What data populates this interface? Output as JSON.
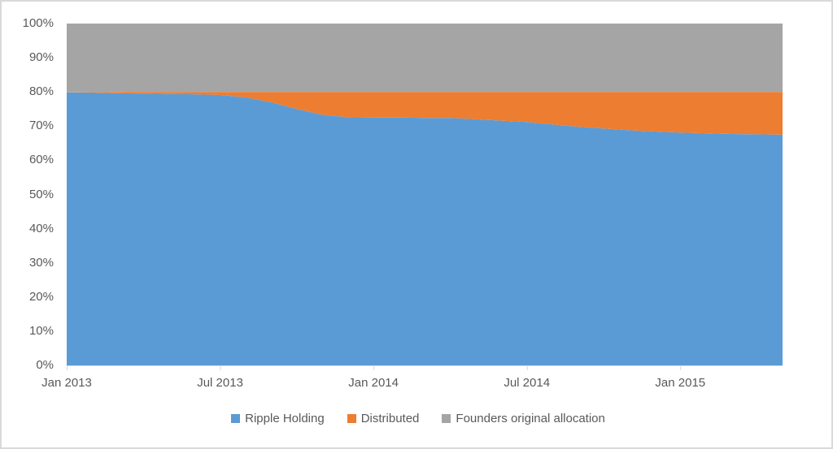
{
  "chart_data": {
    "type": "area",
    "stacked": true,
    "percent_axis": true,
    "title": "",
    "x": [
      "Jan 2013",
      "Feb 2013",
      "Mar 2013",
      "Apr 2013",
      "May 2013",
      "Jun 2013",
      "Jul 2013",
      "Aug 2013",
      "Sep 2013",
      "Oct 2013",
      "Nov 2013",
      "Dec 2013",
      "Jan 2014",
      "Feb 2014",
      "Mar 2014",
      "Apr 2014",
      "May 2014",
      "Jun 2014",
      "Jul 2014",
      "Aug 2014",
      "Sep 2014",
      "Oct 2014",
      "Nov 2014",
      "Dec 2014",
      "Jan 2015",
      "Feb 2015",
      "Mar 2015",
      "Apr 2015",
      "May 2015"
    ],
    "series": [
      {
        "name": "Ripple Holding",
        "color": "#5B9BD5",
        "values": [
          79.9,
          79.8,
          79.6,
          79.5,
          79.4,
          79.3,
          79.1,
          78.4,
          77.0,
          75.0,
          73.3,
          72.6,
          72.5,
          72.5,
          72.4,
          72.4,
          72.0,
          71.6,
          71.2,
          70.5,
          69.8,
          69.3,
          68.8,
          68.4,
          68.1,
          67.9,
          67.7,
          67.6,
          67.5
        ]
      },
      {
        "name": "Distributed",
        "color": "#ED7D31",
        "values": [
          0.1,
          0.2,
          0.4,
          0.5,
          0.6,
          0.7,
          0.9,
          1.6,
          3.0,
          5.0,
          6.7,
          7.4,
          7.5,
          7.5,
          7.6,
          7.6,
          8.0,
          8.4,
          8.8,
          9.5,
          10.2,
          10.7,
          11.2,
          11.6,
          11.9,
          12.1,
          12.3,
          12.4,
          12.5
        ]
      },
      {
        "name": "Founders original allocation",
        "color": "#A5A5A5",
        "values": [
          20,
          20,
          20,
          20,
          20,
          20,
          20,
          20,
          20,
          20,
          20,
          20,
          20,
          20,
          20,
          20,
          20,
          20,
          20,
          20,
          20,
          20,
          20,
          20,
          20,
          20,
          20,
          20,
          20
        ]
      }
    ],
    "x_tick_labels": [
      "Jan 2013",
      "Jul 2013",
      "Jan 2014",
      "Jul 2014",
      "Jan 2015"
    ],
    "x_tick_indices": [
      0,
      6,
      12,
      18,
      24
    ],
    "y_tick_labels": [
      "0%",
      "10%",
      "20%",
      "30%",
      "40%",
      "50%",
      "60%",
      "70%",
      "80%",
      "90%",
      "100%"
    ],
    "ylim": [
      0,
      100
    ],
    "gridlines": false,
    "legend_position": "bottom"
  },
  "colors": {
    "axis_line": "#D9D9D9",
    "tick_mark": "#D9D9D9",
    "tick_text": "#595959",
    "frame_border": "#D9D9D9",
    "background": "#FFFFFF"
  }
}
